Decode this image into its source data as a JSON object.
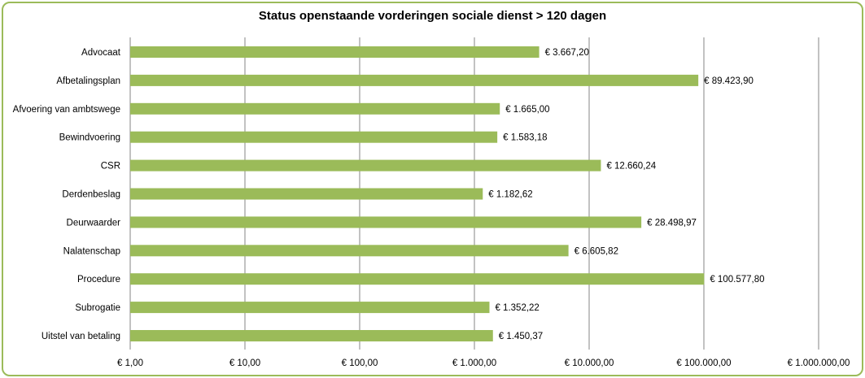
{
  "chart_data": {
    "type": "bar",
    "orientation": "horizontal",
    "title": "Status openstaande vorderingen sociale dienst > 120 dagen",
    "xlabel": "",
    "ylabel": "",
    "x_scale": "log10",
    "xlim": [
      1,
      1000000
    ],
    "x_tick_values": [
      1,
      10,
      100,
      1000,
      10000,
      100000,
      1000000
    ],
    "x_tick_labels": [
      "€ 1,00",
      "€ 10,00",
      "€ 100,00",
      "€ 1.000,00",
      "€ 10.000,00",
      "€ 100.000,00",
      "€ 1.000.000,00"
    ],
    "grid": "vertical major gridlines",
    "legend": "none",
    "bar_color": "#9bbb59",
    "categories": [
      "Advocaat",
      "Afbetalingsplan",
      "Afvoering van ambtswege",
      "Bewindvoering",
      "CSR",
      "Derdenbeslag",
      "Deurwaarder",
      "Nalatenschap",
      "Procedure",
      "Subrogatie",
      "Uitstel van betaling"
    ],
    "values": [
      3667.2,
      89423.9,
      1665.0,
      1583.18,
      12660.24,
      1182.62,
      28498.97,
      6605.82,
      100577.8,
      1352.22,
      1450.37
    ],
    "value_labels": [
      "€ 3.667,20",
      "€ 89.423,90",
      "€ 1.665,00",
      "€ 1.583,18",
      "€ 12.660,24",
      "€ 1.182,62",
      "€ 28.498,97",
      "€ 6.605,82",
      "€ 100.577,80",
      "€ 1.352,22",
      "€ 1.450,37"
    ]
  }
}
